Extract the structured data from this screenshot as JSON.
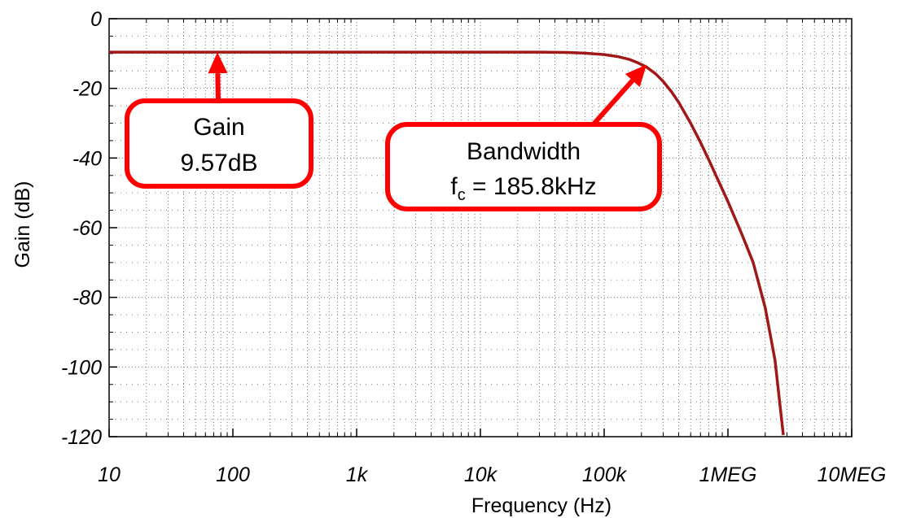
{
  "chart_data": {
    "type": "line",
    "xlabel": "Frequency (Hz)",
    "ylabel": "Gain (dB)",
    "x_scale": "log",
    "xlim": [
      10,
      10000000
    ],
    "ylim": [
      -120,
      0
    ],
    "x_ticks": [
      {
        "value": 10,
        "label": "10"
      },
      {
        "value": 100,
        "label": "100"
      },
      {
        "value": 1000,
        "label": "1k"
      },
      {
        "value": 10000,
        "label": "10k"
      },
      {
        "value": 100000,
        "label": "100k"
      },
      {
        "value": 1000000,
        "label": "1MEG"
      },
      {
        "value": 10000000,
        "label": "10MEG"
      }
    ],
    "y_ticks": [
      {
        "value": 0,
        "label": "0"
      },
      {
        "value": -20,
        "label": "-20"
      },
      {
        "value": -40,
        "label": "-40"
      },
      {
        "value": -60,
        "label": "-60"
      },
      {
        "value": -80,
        "label": "-80"
      },
      {
        "value": -100,
        "label": "-100"
      },
      {
        "value": -120,
        "label": "-120"
      }
    ],
    "grid": "dotted",
    "series": [
      {
        "color": "#a01818",
        "x": [
          10,
          1000,
          10000,
          30000,
          50000,
          70000,
          100000,
          130000,
          160000,
          185800,
          220000,
          260000,
          300000,
          350000,
          400000,
          500000,
          600000,
          700000,
          800000,
          1000000,
          1300000,
          1600000,
          2000000,
          2400000,
          2800000
        ],
        "y": [
          -9.6,
          -9.6,
          -9.6,
          -9.6,
          -9.7,
          -9.9,
          -10.3,
          -10.9,
          -11.7,
          -12.6,
          -13.9,
          -15.8,
          -18.0,
          -21.0,
          -24.0,
          -30.0,
          -35.5,
          -40.5,
          -45.0,
          -52.5,
          -62.0,
          -70.0,
          -83.0,
          -98.0,
          -119.5
        ]
      }
    ],
    "annotations": [
      {
        "lines": [
          "Gain",
          "9.57dB"
        ],
        "color": "#ff0000",
        "arrow_to": {
          "x": 75,
          "y": -9.6
        }
      },
      {
        "lines": [
          "Bandwidth",
          "f",
          "c",
          " = 185.8kHz"
        ],
        "color": "#ff0000",
        "arrow_to": {
          "x": 220000,
          "y": -13.2
        }
      }
    ]
  }
}
